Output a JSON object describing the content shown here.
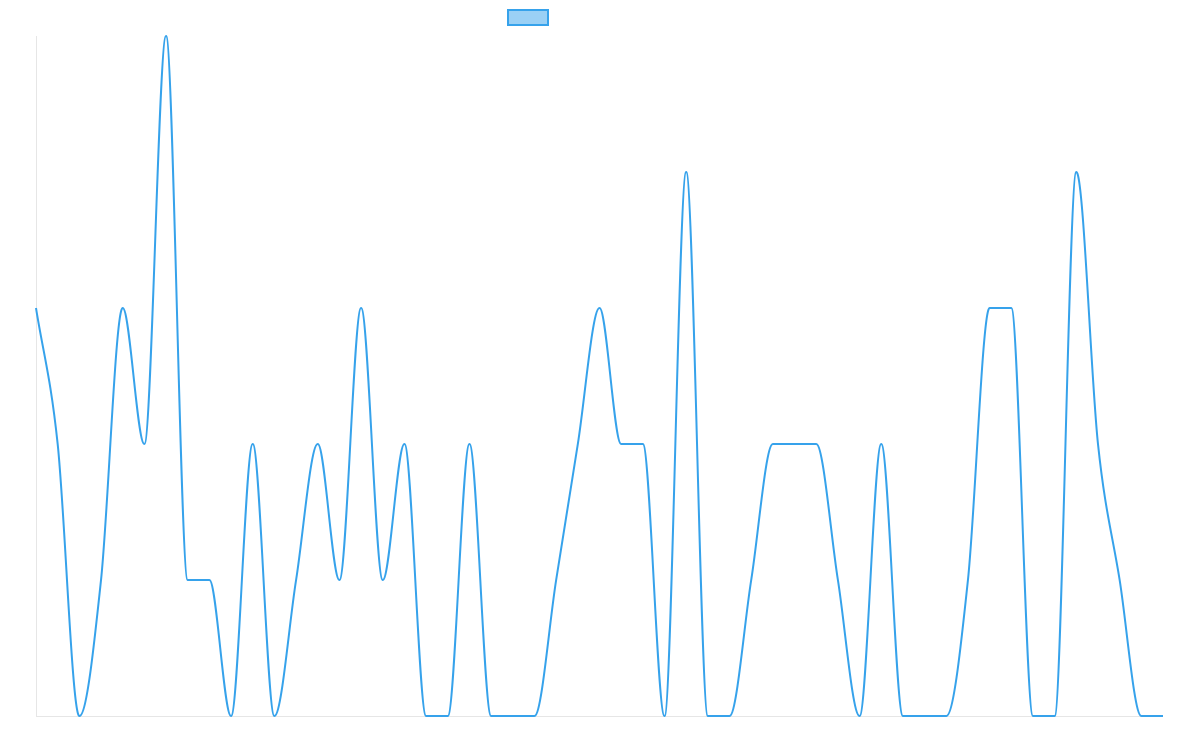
{
  "chart_data": {
    "type": "line",
    "title": "",
    "xlabel": "",
    "ylabel": "",
    "grid": false,
    "legend": "top-center",
    "ylim": [
      0,
      5
    ],
    "series": [
      {
        "label": "",
        "color": "#36a2eb",
        "fill_color": "#9ad0f5",
        "smooth": true,
        "values": [
          3,
          2,
          0,
          1,
          3,
          2,
          5,
          1,
          1,
          0,
          2,
          0,
          1,
          2,
          1,
          3,
          1,
          2,
          0,
          0,
          2,
          0,
          0,
          0,
          1,
          2,
          3,
          2,
          2,
          0,
          4,
          0,
          0,
          1,
          2,
          2,
          2,
          1,
          0,
          2,
          0,
          0,
          0,
          1,
          3,
          3,
          0,
          0,
          4,
          2,
          1,
          0,
          0
        ]
      }
    ]
  }
}
